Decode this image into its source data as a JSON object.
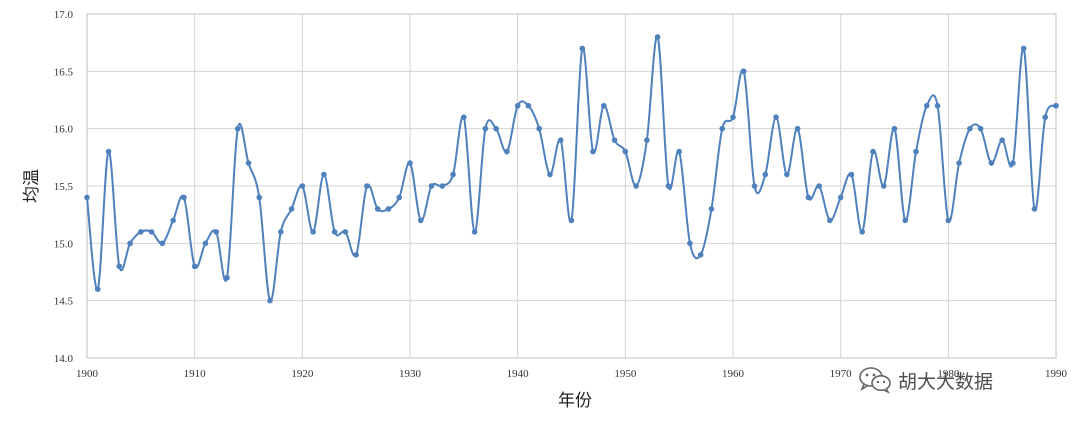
{
  "chart_data": {
    "type": "line",
    "xlabel": "年份",
    "ylabel": "均温",
    "xlim": [
      1900,
      1990
    ],
    "ylim": [
      14.0,
      17.0
    ],
    "x_ticks": [
      "1900",
      "1910",
      "1920",
      "1930",
      "1940",
      "1950",
      "1960",
      "1970",
      "1980",
      "1990"
    ],
    "y_ticks": [
      "14.0",
      "14.5",
      "15.0",
      "15.5",
      "16.0",
      "16.5",
      "17.0"
    ],
    "grid": true,
    "smooth": true,
    "series": [
      {
        "color": "#4f81bd",
        "x": [
          1900,
          1901,
          1902,
          1903,
          1904,
          1905,
          1906,
          1907,
          1908,
          1909,
          1910,
          1911,
          1912,
          1913,
          1914,
          1915,
          1916,
          1917,
          1918,
          1919,
          1920,
          1921,
          1922,
          1923,
          1924,
          1925,
          1926,
          1927,
          1928,
          1929,
          1930,
          1931,
          1932,
          1933,
          1934,
          1935,
          1936,
          1937,
          1938,
          1939,
          1940,
          1941,
          1942,
          1943,
          1944,
          1945,
          1946,
          1947,
          1948,
          1949,
          1950,
          1951,
          1952,
          1953,
          1954,
          1955,
          1956,
          1957,
          1958,
          1959,
          1960,
          1961,
          1962,
          1963,
          1964,
          1965,
          1966,
          1967,
          1968,
          1969,
          1970,
          1971,
          1972,
          1973,
          1974,
          1975,
          1976,
          1977,
          1978,
          1979,
          1980,
          1981,
          1982,
          1983,
          1984,
          1985,
          1986,
          1987,
          1988,
          1989,
          1990
        ],
        "y": [
          15.4,
          14.6,
          15.8,
          14.8,
          15.0,
          15.1,
          15.1,
          15.0,
          15.2,
          15.4,
          14.8,
          15.0,
          15.1,
          14.7,
          16.0,
          15.7,
          15.4,
          14.5,
          15.1,
          15.3,
          15.5,
          15.1,
          15.6,
          15.1,
          15.1,
          14.9,
          15.5,
          15.3,
          15.3,
          15.4,
          15.7,
          15.2,
          15.5,
          15.5,
          15.6,
          16.1,
          15.1,
          16.0,
          16.0,
          15.8,
          16.2,
          16.2,
          16.0,
          15.6,
          15.9,
          15.2,
          16.7,
          15.8,
          16.2,
          15.9,
          15.8,
          15.5,
          15.9,
          16.8,
          15.5,
          15.8,
          15.0,
          14.9,
          15.3,
          16.0,
          16.1,
          16.5,
          15.5,
          15.6,
          16.1,
          15.6,
          16.0,
          15.4,
          15.5,
          15.2,
          15.4,
          15.6,
          15.1,
          15.8,
          15.5,
          16.0,
          15.2,
          15.8,
          16.2,
          16.2,
          15.2,
          15.7,
          16.0,
          16.0,
          15.7,
          15.9,
          15.7,
          16.7,
          15.3,
          16.1,
          16.2
        ]
      }
    ]
  },
  "watermark": {
    "icon": "wechat-icon",
    "text": "胡大大数据"
  }
}
